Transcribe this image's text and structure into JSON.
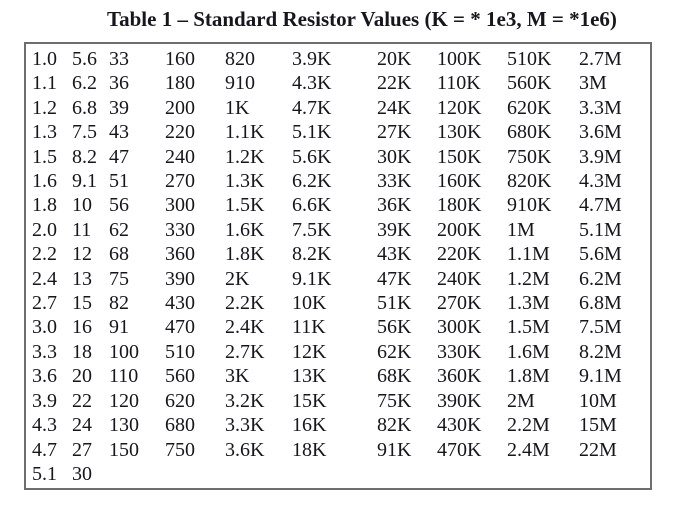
{
  "title": "Table 1 – Standard Resistor Values (K = * 1e3, M = *1e6)",
  "resistor_table": {
    "rows": [
      [
        "1.0",
        "5.6",
        "33",
        "160",
        "820",
        "3.9K",
        "20K",
        "100K",
        "510K",
        "2.7M"
      ],
      [
        "1.1",
        "6.2",
        "36",
        "180",
        "910",
        "4.3K",
        "22K",
        "110K",
        "560K",
        "3M"
      ],
      [
        "1.2",
        "6.8",
        "39",
        "200",
        "1K",
        "4.7K",
        "24K",
        "120K",
        "620K",
        "3.3M"
      ],
      [
        "1.3",
        "7.5",
        "43",
        "220",
        "1.1K",
        "5.1K",
        "27K",
        "130K",
        "680K",
        "3.6M"
      ],
      [
        "1.5",
        "8.2",
        "47",
        "240",
        "1.2K",
        "5.6K",
        "30K",
        "150K",
        "750K",
        "3.9M"
      ],
      [
        "1.6",
        "9.1",
        "51",
        "270",
        "1.3K",
        "6.2K",
        "33K",
        "160K",
        "820K",
        "4.3M"
      ],
      [
        "1.8",
        "10",
        "56",
        "300",
        "1.5K",
        "6.6K",
        "36K",
        "180K",
        "910K",
        "4.7M"
      ],
      [
        "2.0",
        "11",
        "62",
        "330",
        "1.6K",
        "7.5K",
        "39K",
        "200K",
        "1M",
        "5.1M"
      ],
      [
        "2.2",
        "12",
        "68",
        "360",
        "1.8K",
        "8.2K",
        "43K",
        "220K",
        "1.1M",
        "5.6M"
      ],
      [
        "2.4",
        "13",
        "75",
        "390",
        "2K",
        "9.1K",
        "47K",
        "240K",
        "1.2M",
        "6.2M"
      ],
      [
        "2.7",
        "15",
        "82",
        "430",
        "2.2K",
        "10K",
        "51K",
        "270K",
        "1.3M",
        "6.8M"
      ],
      [
        "3.0",
        "16",
        "91",
        "470",
        "2.4K",
        "11K",
        "56K",
        "300K",
        "1.5M",
        "7.5M"
      ],
      [
        "3.3",
        "18",
        "100",
        "510",
        "2.7K",
        "12K",
        "62K",
        "330K",
        "1.6M",
        "8.2M"
      ],
      [
        "3.6",
        "20",
        "110",
        "560",
        "3K",
        "13K",
        "68K",
        "360K",
        "1.8M",
        "9.1M"
      ],
      [
        "3.9",
        "22",
        "120",
        "620",
        "3.2K",
        "15K",
        "75K",
        "390K",
        "2M",
        "10M"
      ],
      [
        "4.3",
        "24",
        "130",
        "680",
        "3.3K",
        "16K",
        "82K",
        "430K",
        "2.2M",
        "15M"
      ],
      [
        "4.7",
        "27",
        "150",
        "750",
        "3.6K",
        "18K",
        "91K",
        "470K",
        "2.4M",
        "22M"
      ],
      [
        "5.1",
        "30",
        "",
        "",
        "",
        "",
        "",
        "",
        "",
        ""
      ]
    ]
  },
  "colors": {
    "text": "#16161d",
    "border": "#6e6e6e",
    "background": "#ffffff"
  }
}
